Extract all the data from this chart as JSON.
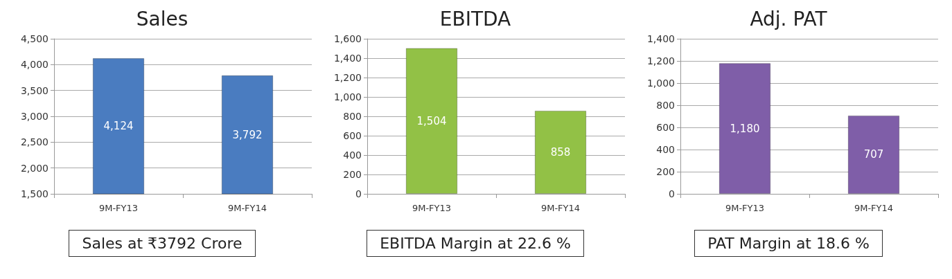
{
  "chart_data": [
    {
      "type": "bar",
      "title": "Sales",
      "categories": [
        "9M-FY13",
        "9M-FY14"
      ],
      "values": [
        4124,
        3792
      ],
      "value_labels": [
        "4,124",
        "3,792"
      ],
      "color": "#4a7cc0",
      "ylim": [
        1500,
        4500
      ],
      "yticks": [
        {
          "value": 1500,
          "label": "1,500"
        },
        {
          "value": 2000,
          "label": "2,000"
        },
        {
          "value": 2500,
          "label": "2,500"
        },
        {
          "value": 3000,
          "label": "3,000"
        },
        {
          "value": 3500,
          "label": "3,500"
        },
        {
          "value": 4000,
          "label": "4,000"
        },
        {
          "value": 4500,
          "label": "4,500"
        }
      ],
      "grid": "y",
      "annotations": [
        "Sales at ₹3792 Crore"
      ]
    },
    {
      "type": "bar",
      "title": "EBITDA",
      "categories": [
        "9M-FY13",
        "9M-FY14"
      ],
      "values": [
        1504,
        858
      ],
      "value_labels": [
        "1,504",
        "858"
      ],
      "color": "#92c146",
      "ylim": [
        0,
        1600
      ],
      "yticks": [
        0,
        200,
        400,
        600,
        800,
        {
          "value": 1000,
          "label": "1,000"
        },
        {
          "value": 1200,
          "label": "1,200"
        },
        {
          "value": 1400,
          "label": "1,400"
        },
        {
          "value": 1600,
          "label": "1,600"
        }
      ],
      "grid": "y",
      "annotations": [
        "EBITDA Margin at 22.6 %"
      ]
    },
    {
      "type": "bar",
      "title": "Adj. PAT",
      "categories": [
        "9M-FY13",
        "9M-FY14"
      ],
      "values": [
        1180,
        707
      ],
      "value_labels": [
        "1,180",
        "707"
      ],
      "color": "#7f5ea8",
      "ylim": [
        0,
        1400
      ],
      "yticks": [
        0,
        200,
        400,
        600,
        800,
        {
          "value": 1000,
          "label": "1,000"
        },
        {
          "value": 1200,
          "label": "1,200"
        },
        {
          "value": 1400,
          "label": "1,400"
        }
      ],
      "grid": "y",
      "annotations": [
        "PAT Margin at 18.6 %"
      ]
    }
  ]
}
